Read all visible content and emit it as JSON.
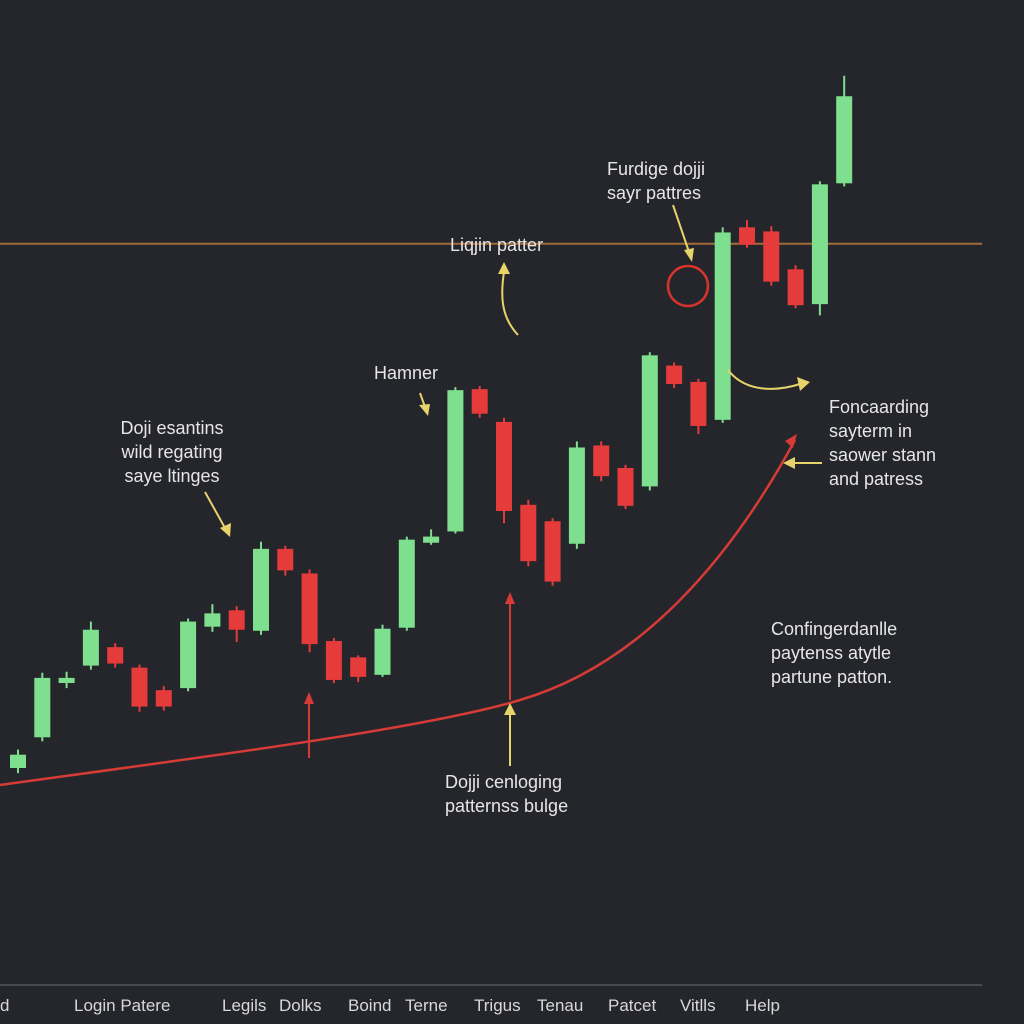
{
  "chart_data": {
    "type": "candlestick",
    "ylim": [
      0,
      100
    ],
    "colors": {
      "bullish": "#7ee08f",
      "bearish": "#e53b3b",
      "background": "#25262b",
      "resistance_line": "#a36a3a",
      "trend_curve": "#d63b36",
      "annotation_arrow": "#e6d36a",
      "highlight_circle": "#d9342b"
    },
    "candles": [
      {
        "i": 0,
        "dir": "up",
        "open": 25.0,
        "close": 26.3,
        "high": 26.8,
        "low": 24.5
      },
      {
        "i": 1,
        "dir": "up",
        "open": 28.0,
        "close": 33.8,
        "high": 34.3,
        "low": 27.6
      },
      {
        "i": 2,
        "dir": "up",
        "open": 33.3,
        "close": 33.8,
        "high": 34.4,
        "low": 32.8
      },
      {
        "i": 3,
        "dir": "up",
        "open": 35.0,
        "close": 38.5,
        "high": 39.3,
        "low": 34.6
      },
      {
        "i": 4,
        "dir": "down",
        "open": 36.8,
        "close": 35.2,
        "high": 37.2,
        "low": 34.8
      },
      {
        "i": 5,
        "dir": "down",
        "open": 34.8,
        "close": 31.0,
        "high": 35.1,
        "low": 30.5
      },
      {
        "i": 6,
        "dir": "down",
        "open": 32.6,
        "close": 31.0,
        "high": 33.0,
        "low": 30.6
      },
      {
        "i": 7,
        "dir": "up",
        "open": 32.8,
        "close": 39.3,
        "high": 39.6,
        "low": 32.5
      },
      {
        "i": 8,
        "dir": "up",
        "open": 38.8,
        "close": 40.1,
        "high": 41.0,
        "low": 38.3
      },
      {
        "i": 9,
        "dir": "down",
        "open": 40.4,
        "close": 38.5,
        "high": 40.8,
        "low": 37.3
      },
      {
        "i": 10,
        "dir": "up",
        "open": 38.4,
        "close": 46.4,
        "high": 47.1,
        "low": 38.0
      },
      {
        "i": 11,
        "dir": "down",
        "open": 46.4,
        "close": 44.3,
        "high": 46.7,
        "low": 43.8
      },
      {
        "i": 12,
        "dir": "down",
        "open": 44.0,
        "close": 37.1,
        "high": 44.4,
        "low": 36.3
      },
      {
        "i": 13,
        "dir": "down",
        "open": 37.4,
        "close": 33.6,
        "high": 37.7,
        "low": 33.3
      },
      {
        "i": 14,
        "dir": "down",
        "open": 35.8,
        "close": 33.9,
        "high": 36.0,
        "low": 33.4
      },
      {
        "i": 15,
        "dir": "up",
        "open": 34.1,
        "close": 38.6,
        "high": 39.0,
        "low": 33.9
      },
      {
        "i": 16,
        "dir": "up",
        "open": 38.7,
        "close": 47.3,
        "high": 47.6,
        "low": 38.4
      },
      {
        "i": 17,
        "dir": "up",
        "open": 47.0,
        "close": 47.6,
        "high": 48.3,
        "low": 46.8
      },
      {
        "i": 18,
        "dir": "up",
        "open": 48.1,
        "close": 61.9,
        "high": 62.2,
        "low": 47.9
      },
      {
        "i": 19,
        "dir": "down",
        "open": 62.0,
        "close": 59.6,
        "high": 62.3,
        "low": 59.2
      },
      {
        "i": 20,
        "dir": "down",
        "open": 58.8,
        "close": 50.1,
        "high": 59.2,
        "low": 48.9
      },
      {
        "i": 21,
        "dir": "down",
        "open": 50.7,
        "close": 45.2,
        "high": 51.2,
        "low": 44.7
      },
      {
        "i": 22,
        "dir": "down",
        "open": 49.1,
        "close": 43.2,
        "high": 49.4,
        "low": 42.8
      },
      {
        "i": 23,
        "dir": "up",
        "open": 46.9,
        "close": 56.3,
        "high": 56.9,
        "low": 46.4
      },
      {
        "i": 24,
        "dir": "down",
        "open": 56.5,
        "close": 53.5,
        "high": 56.9,
        "low": 53.0
      },
      {
        "i": 25,
        "dir": "down",
        "open": 54.3,
        "close": 50.6,
        "high": 54.6,
        "low": 50.3
      },
      {
        "i": 26,
        "dir": "up",
        "open": 52.5,
        "close": 65.3,
        "high": 65.6,
        "low": 52.1
      },
      {
        "i": 27,
        "dir": "down",
        "open": 64.3,
        "close": 62.5,
        "high": 64.6,
        "low": 62.1
      },
      {
        "i": 28,
        "dir": "down",
        "open": 62.7,
        "close": 58.4,
        "high": 63.0,
        "low": 57.6
      },
      {
        "i": 29,
        "dir": "up",
        "open": 59.0,
        "close": 77.3,
        "high": 77.8,
        "low": 58.7
      },
      {
        "i": 30,
        "dir": "down",
        "open": 77.8,
        "close": 76.1,
        "high": 78.5,
        "low": 75.8
      },
      {
        "i": 31,
        "dir": "down",
        "open": 77.4,
        "close": 72.5,
        "high": 77.9,
        "low": 72.1
      },
      {
        "i": 32,
        "dir": "down",
        "open": 73.7,
        "close": 70.2,
        "high": 74.1,
        "low": 69.9
      },
      {
        "i": 33,
        "dir": "up",
        "open": 70.3,
        "close": 82.0,
        "high": 82.3,
        "low": 69.2
      },
      {
        "i": 34,
        "dir": "up",
        "open": 82.1,
        "close": 90.6,
        "high": 92.6,
        "low": 81.8
      }
    ],
    "resistance_level": 76.2,
    "annotations": [
      {
        "id": "furdige",
        "lines": [
          "Furdige dojji",
          "sayr pattres"
        ]
      },
      {
        "id": "liqjin",
        "lines": [
          "Liqjin patter"
        ]
      },
      {
        "id": "hamner",
        "lines": [
          "Hamner"
        ]
      },
      {
        "id": "doji-left",
        "lines": [
          "Doji esantins",
          "wild regating",
          "saye ltinges"
        ]
      },
      {
        "id": "foncaarding",
        "lines": [
          "Foncaarding",
          "sayterm in",
          "saower stann",
          "and patress"
        ]
      },
      {
        "id": "confinger",
        "lines": [
          "Confingerdanlle",
          "paytenss atytle",
          "partune patton."
        ]
      },
      {
        "id": "doji-bottom",
        "lines": [
          "Dojji cenloging",
          "patternss bulge"
        ]
      }
    ],
    "x_axis_labels": [
      "d",
      "Login Patere",
      "Legils",
      "Dolks",
      "Boind",
      "Terne",
      "Trigus",
      "Tenau",
      "Patcet",
      "Vitlls",
      "Help"
    ]
  }
}
